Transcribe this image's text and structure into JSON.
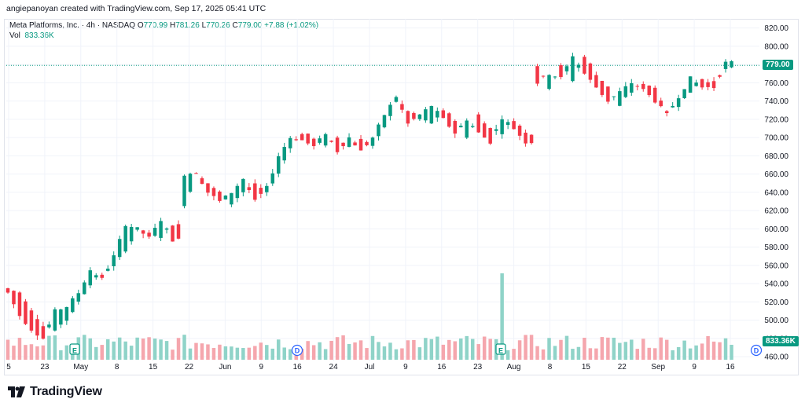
{
  "header": {
    "attribution": "angiepanoyan created with TradingView.com, Sep 17, 2025 05:41 UTC"
  },
  "legend": {
    "symbol": "Meta Platforms, Inc. · 4h · NASDAQ",
    "open_key": "O",
    "open": "770.99",
    "high_key": "H",
    "high": "781.26",
    "low_key": "L",
    "low": "770.26",
    "close_key": "C",
    "close": "779.00",
    "change": "+7.88 (+1.02%)",
    "vol_label": "Vol",
    "vol_value": "833.36K"
  },
  "price_axis": {
    "ticks": [
      "820.00",
      "800.00",
      "780.00",
      "760.00",
      "740.00",
      "720.00",
      "700.00",
      "680.00",
      "660.00",
      "640.00",
      "620.00",
      "600.00",
      "580.00",
      "560.00",
      "540.00",
      "520.00",
      "500.00",
      "480.00",
      "460.00"
    ],
    "last_price_tag": "779.00",
    "volume_tag": "833.36K"
  },
  "time_axis": {
    "labels": [
      "5",
      "23",
      "May",
      "8",
      "15",
      "22",
      "Jun",
      "9",
      "16",
      "24",
      "Jul",
      "9",
      "16",
      "23",
      "Aug",
      "8",
      "15",
      "22",
      "Sep",
      "9",
      "16"
    ]
  },
  "events": {
    "earnings_label": "E",
    "dividend_label": "D"
  },
  "branding": {
    "logo_text": "TradingView"
  },
  "colors": {
    "up": "#089981",
    "down": "#f23645",
    "up_vol": "#8fd3c8",
    "down_vol": "#f5a6ad"
  },
  "chart_data": {
    "type": "candlestick",
    "title": "Meta Platforms, Inc. · 4h · NASDAQ",
    "ylim": [
      455,
      830
    ],
    "y_ticks": [
      820,
      800,
      780,
      760,
      740,
      720,
      700,
      680,
      660,
      640,
      620,
      600,
      580,
      560,
      540,
      520,
      500,
      480,
      460
    ],
    "last_close": 779.0,
    "grid": true,
    "segments": [
      {
        "points": [
          [
            535,
            530
          ],
          [
            530,
            505
          ],
          [
            510,
            490
          ],
          [
            495,
            480
          ],
          [
            490,
            510
          ],
          [
            500,
            515
          ],
          [
            520,
            530
          ],
          [
            540,
            555
          ],
          [
            550,
            545
          ],
          [
            560,
            570
          ],
          [
            575,
            605
          ],
          [
            600,
            600
          ],
          [
            596,
            590
          ],
          [
            592,
            610
          ],
          [
            605,
            588
          ]
        ]
      },
      {
        "points": [
          [
            625,
            660
          ],
          [
            660,
            662
          ],
          [
            650,
            640
          ],
          [
            640,
            630
          ],
          [
            628,
            640
          ],
          [
            640,
            655
          ],
          [
            650,
            630
          ],
          [
            640,
            645
          ],
          [
            660,
            680
          ],
          [
            690,
            700
          ],
          [
            705,
            697
          ],
          [
            700,
            690
          ],
          [
            690,
            705
          ],
          [
            700,
            685
          ],
          [
            690,
            700
          ],
          [
            700,
            685
          ],
          [
            690,
            700
          ],
          [
            710,
            725
          ],
          [
            740,
            745
          ],
          [
            730,
            715
          ],
          [
            720,
            725
          ],
          [
            715,
            735
          ],
          [
            730,
            720
          ],
          [
            720,
            705
          ],
          [
            700,
            720
          ],
          [
            725,
            705
          ],
          [
            710,
            695
          ],
          [
            705,
            722
          ],
          [
            720,
            710
          ],
          [
            705,
            695
          ]
        ]
      },
      {
        "points": [
          [
            780,
            760
          ],
          [
            755,
            770
          ],
          [
            780,
            765
          ],
          [
            762,
            790
          ],
          [
            790,
            770
          ],
          [
            770,
            755
          ],
          [
            755,
            740
          ],
          [
            735,
            750
          ],
          [
            750,
            760
          ],
          [
            760,
            752
          ],
          [
            755,
            740
          ],
          [
            730,
            725
          ],
          [
            735,
            745
          ],
          [
            750,
            765
          ],
          [
            765,
            755
          ],
          [
            760,
            755
          ],
          [
            775,
            782
          ]
        ]
      }
    ],
    "volume_range": [
      0,
      100
    ],
    "volume_spike": 96
  }
}
